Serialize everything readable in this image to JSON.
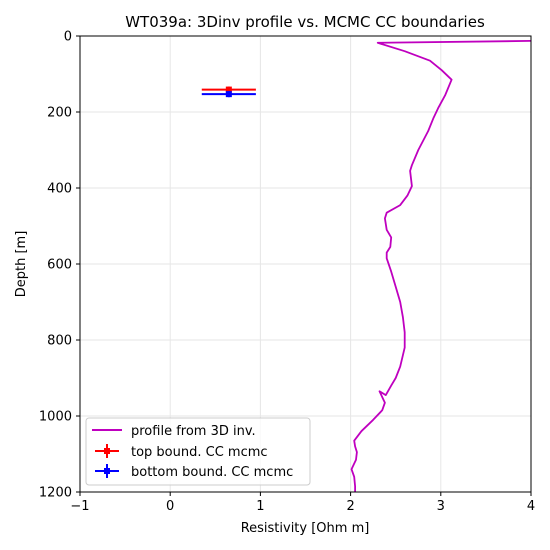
{
  "chart_data": {
    "type": "line",
    "title": "WT039a: 3Dinv profile vs. MCMC CC boundaries",
    "xlabel": "Resistivity [Ohm m]",
    "ylabel": "Depth [m]",
    "xlim": [
      -1,
      4
    ],
    "ylim": [
      1200,
      0
    ],
    "y_inverted": true,
    "xticks": [
      -1,
      0,
      1,
      2,
      3,
      4
    ],
    "yticks": [
      0,
      200,
      400,
      600,
      800,
      1000,
      1200
    ],
    "grid": true,
    "legend_position": "lower-left",
    "series": [
      {
        "name": "profile from 3D inv.",
        "color": "#bf00bf",
        "kind": "line",
        "x": [
          4.0,
          2.3,
          2.6,
          2.88,
          3.01,
          3.12,
          3.05,
          2.97,
          2.92,
          2.86,
          2.75,
          2.68,
          2.66,
          2.67,
          2.68,
          2.63,
          2.55,
          2.4,
          2.38,
          2.4,
          2.45,
          2.44,
          2.4,
          2.4,
          2.45,
          2.5,
          2.55,
          2.58,
          2.6,
          2.6,
          2.6,
          2.58,
          2.55,
          2.5,
          2.45,
          2.39,
          2.32,
          2.38,
          2.35,
          2.25,
          2.12,
          2.04,
          2.05,
          2.07,
          2.06,
          2.01,
          2.04,
          2.05,
          2.05
        ],
        "y": [
          13,
          18,
          40,
          65,
          90,
          115,
          155,
          190,
          215,
          250,
          300,
          340,
          355,
          375,
          395,
          420,
          445,
          465,
          480,
          510,
          530,
          555,
          570,
          585,
          620,
          660,
          700,
          740,
          780,
          810,
          820,
          840,
          870,
          900,
          920,
          945,
          935,
          965,
          985,
          1010,
          1040,
          1065,
          1080,
          1095,
          1115,
          1140,
          1160,
          1185,
          1200
        ]
      },
      {
        "name": "top bound. CC mcmc",
        "color": "#ff0000",
        "kind": "errorbar",
        "x": 0.65,
        "y": 141,
        "xerr": 0.3,
        "yerr": 8
      },
      {
        "name": "bottom bound. CC mcmc",
        "color": "#0000ff",
        "kind": "errorbar",
        "x": 0.65,
        "y": 153,
        "xerr": 0.3,
        "yerr": 8
      }
    ]
  }
}
